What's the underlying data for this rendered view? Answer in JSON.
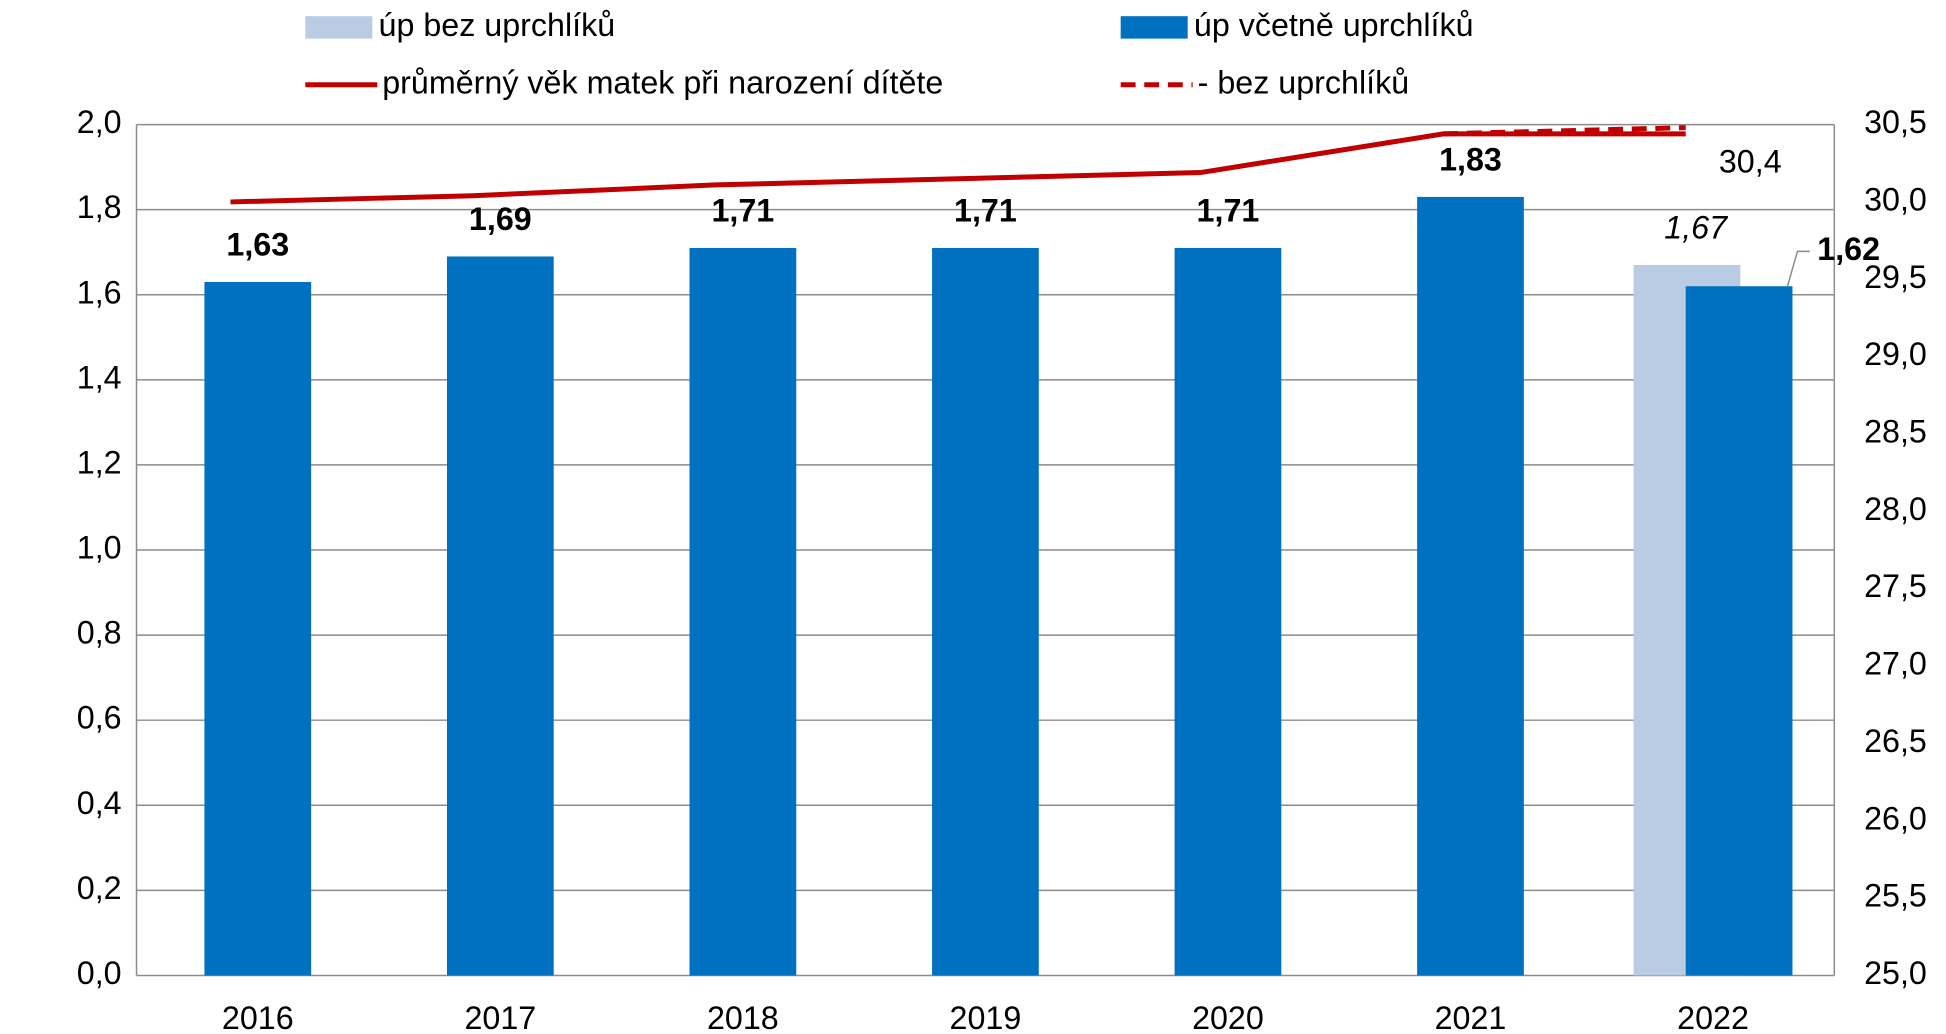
{
  "chart_data": {
    "type": "bar",
    "categories": [
      "2016",
      "2017",
      "2018",
      "2019",
      "2020",
      "2021",
      "2022"
    ],
    "series": [
      {
        "name": "úp bez uprchlíků",
        "color": "#b9cce4",
        "values": [
          null,
          null,
          null,
          null,
          null,
          null,
          1.67
        ],
        "value_labels": [
          null,
          null,
          null,
          null,
          null,
          null,
          "1,67"
        ]
      },
      {
        "name": "úp včetně uprchlíků",
        "color": "#0070c0",
        "values": [
          1.63,
          1.69,
          1.71,
          1.71,
          1.71,
          1.83,
          1.62
        ],
        "value_labels": [
          "1,63",
          "1,69",
          "1,71",
          "1,71",
          "1,71",
          "1,83",
          "1,62"
        ]
      },
      {
        "name": "průměrný věk matek při narození dítěte",
        "type": "line",
        "axis": "y2",
        "color": "#c00000",
        "values": [
          30.0,
          30.04,
          30.11,
          30.15,
          30.19,
          30.44,
          30.44
        ],
        "value_labels": [
          null,
          null,
          null,
          null,
          null,
          null,
          "30,4"
        ]
      },
      {
        "name": "- bez uprchlíků",
        "type": "line",
        "dashed": true,
        "axis": "y2",
        "color": "#c00000",
        "values": [
          null,
          null,
          null,
          null,
          null,
          30.44,
          30.48
        ]
      }
    ],
    "ylim": [
      0,
      2
    ],
    "yticks": [
      {
        "value": 0,
        "label": "0,0"
      },
      {
        "value": 0.2,
        "label": "0,2"
      },
      {
        "value": 0.4,
        "label": "0,4"
      },
      {
        "value": 0.6,
        "label": "0,6"
      },
      {
        "value": 0.8,
        "label": "0,8"
      },
      {
        "value": 1,
        "label": "1,0"
      },
      {
        "value": 1.2,
        "label": "1,2"
      },
      {
        "value": 1.4,
        "label": "1,4"
      },
      {
        "value": 1.6,
        "label": "1,6"
      },
      {
        "value": 1.8,
        "label": "1,8"
      },
      {
        "value": 2,
        "label": "2,0"
      }
    ],
    "y2lim": [
      25,
      30.5
    ],
    "y2ticks": [
      {
        "value": 25,
        "label": "25,0"
      },
      {
        "value": 25.5,
        "label": "25,5"
      },
      {
        "value": 26,
        "label": "26,0"
      },
      {
        "value": 26.5,
        "label": "26,5"
      },
      {
        "value": 27,
        "label": "27,0"
      },
      {
        "value": 27.5,
        "label": "27,5"
      },
      {
        "value": 28,
        "label": "28,0"
      },
      {
        "value": 28.5,
        "label": "28,5"
      },
      {
        "value": 29,
        "label": "29,0"
      },
      {
        "value": 29.5,
        "label": "29,5"
      },
      {
        "value": 30,
        "label": "30,0"
      },
      {
        "value": 30.5,
        "label": "30,5"
      }
    ],
    "grid": true
  }
}
